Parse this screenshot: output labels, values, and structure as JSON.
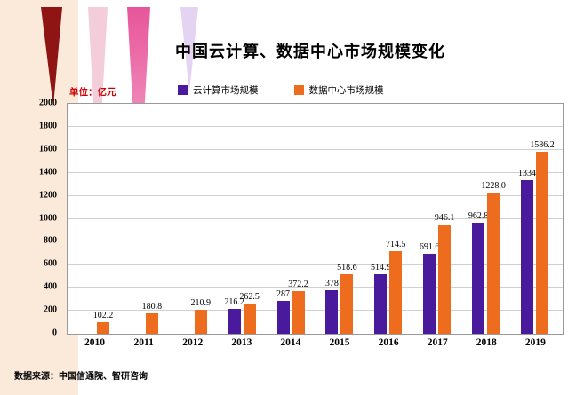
{
  "title": "中国云计算、数据中心市场规模变化",
  "unit_label": "单位：亿元",
  "source": "数据来源：中国信通院、智研咨询",
  "colors": {
    "cloud": "#4a1a9c",
    "datacenter": "#ee6c1d",
    "unit_label_red": "#cc0000"
  },
  "legend": {
    "items": [
      {
        "label": "云计算市场规模",
        "color": "#4a1a9c"
      },
      {
        "label": "数据中心市场规模",
        "color": "#ee6c1d"
      }
    ]
  },
  "chart_data": {
    "type": "bar",
    "title": "中国云计算、数据中心市场规模变化",
    "ylabel": "亿元",
    "categories": [
      "2010",
      "2011",
      "2012",
      "2013",
      "2014",
      "2015",
      "2016",
      "2017",
      "2018",
      "2019"
    ],
    "series": [
      {
        "name": "云计算市场规模",
        "color": "#4a1a9c",
        "values": [
          0,
          0,
          0,
          216.2,
          287,
          378,
          514.9,
          691.6,
          962.8,
          1334
        ],
        "labels": [
          null,
          null,
          null,
          "216.2",
          "287",
          "378",
          "514.9",
          "691.6",
          "962.8",
          "1334"
        ]
      },
      {
        "name": "数据中心市场规模",
        "color": "#ee6c1d",
        "values": [
          102.2,
          180.8,
          210.9,
          262.5,
          372.2,
          518.6,
          714.5,
          946.1,
          1228.0,
          1586.2
        ],
        "labels": [
          "102.2",
          "180.8",
          "210.9",
          "262.5",
          "372.2",
          "518.6",
          "714.5",
          "946.1",
          "1228.0",
          "1586.2"
        ]
      }
    ],
    "ylim": [
      0,
      2000
    ],
    "ytick_step": 200,
    "grid": true,
    "legend_position": "top"
  }
}
